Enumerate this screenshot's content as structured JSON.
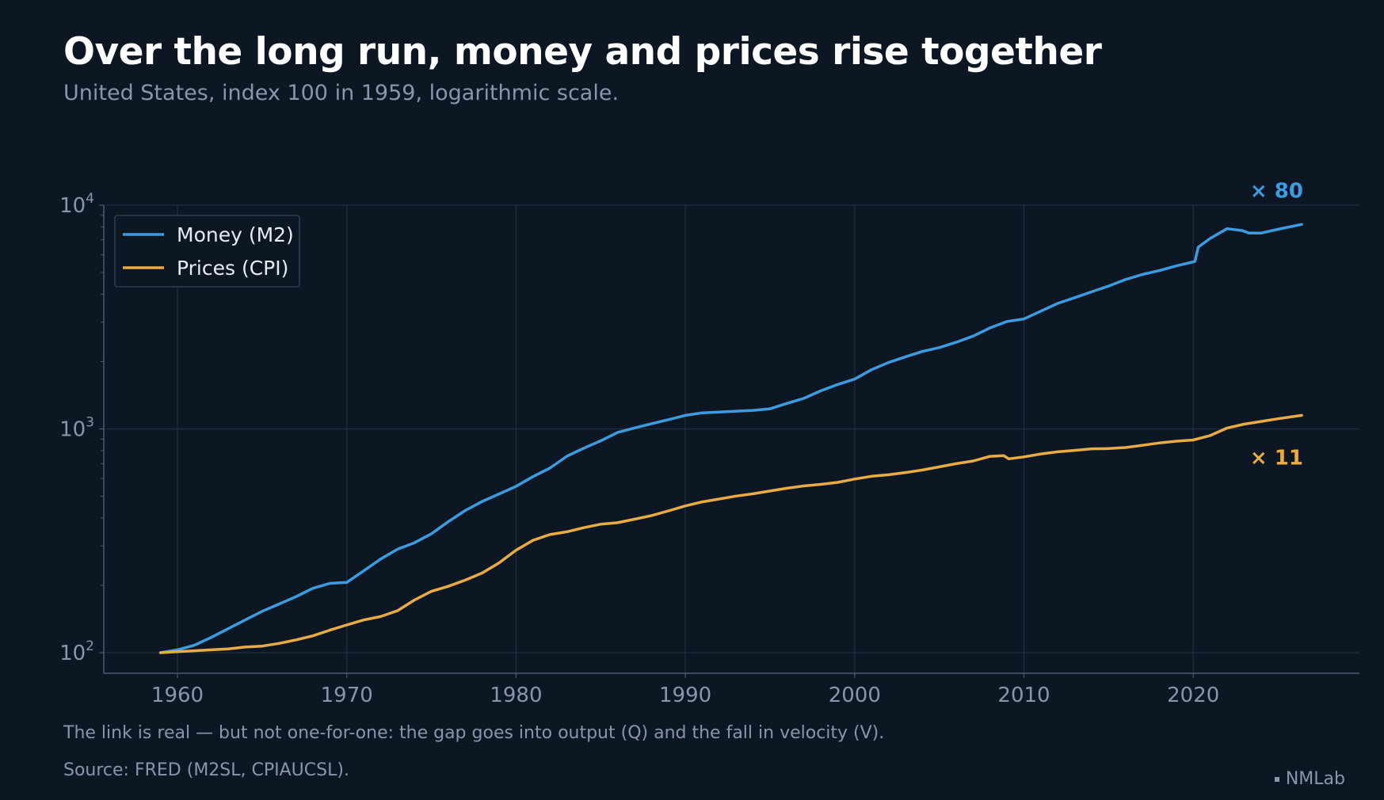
{
  "title": "Over the long run, money and prices rise together",
  "subtitle": "United States, index 100 in 1959, logarithmic scale.",
  "note": "The link is real — but not one-for-one: the gap goes into output (Q) and the fall in velocity (V).",
  "source": "Source: FRED (M2SL, CPIAUCSL).",
  "brand": "NMLab",
  "colors": {
    "background": "#0d1724",
    "m2": "#3d9be0",
    "cpi": "#e8ac45",
    "grid": "#1f2e40",
    "axis": "#4a5a70",
    "text": "#8796ad"
  },
  "chart_data": {
    "type": "line",
    "yscale": "log",
    "xlim": [
      1955.8,
      2029.5
    ],
    "ylim": [
      80,
      10000
    ],
    "xticks": [
      1960,
      1970,
      1980,
      1990,
      2000,
      2010,
      2020
    ],
    "yticks": [
      {
        "value": 100,
        "base": "10",
        "exp": "2"
      },
      {
        "value": 1000,
        "base": "10",
        "exp": "3"
      },
      {
        "value": 10000,
        "base": "10",
        "exp": "4"
      }
    ],
    "grid": true,
    "legend_position": "top-left",
    "series": [
      {
        "name": "Money (M2)",
        "color": "#3d9be0",
        "end_label": "× 80",
        "points": [
          [
            1959,
            100
          ],
          [
            1960,
            103
          ],
          [
            1961,
            108
          ],
          [
            1962,
            117
          ],
          [
            1963,
            128
          ],
          [
            1964,
            140
          ],
          [
            1965,
            153
          ],
          [
            1966,
            165
          ],
          [
            1967,
            178
          ],
          [
            1968,
            194
          ],
          [
            1969,
            204
          ],
          [
            1970,
            206
          ],
          [
            1971,
            232
          ],
          [
            1972,
            262
          ],
          [
            1973,
            290
          ],
          [
            1974,
            310
          ],
          [
            1975,
            340
          ],
          [
            1976,
            385
          ],
          [
            1977,
            432
          ],
          [
            1978,
            474
          ],
          [
            1979,
            512
          ],
          [
            1980,
            554
          ],
          [
            1981,
            612
          ],
          [
            1982,
            668
          ],
          [
            1983,
            755
          ],
          [
            1984,
            820
          ],
          [
            1985,
            885
          ],
          [
            1986,
            965
          ],
          [
            1987,
            1010
          ],
          [
            1988,
            1055
          ],
          [
            1989,
            1100
          ],
          [
            1990,
            1150
          ],
          [
            1991,
            1180
          ],
          [
            1992,
            1190
          ],
          [
            1993,
            1200
          ],
          [
            1994,
            1210
          ],
          [
            1995,
            1230
          ],
          [
            1996,
            1300
          ],
          [
            1997,
            1370
          ],
          [
            1998,
            1480
          ],
          [
            1999,
            1580
          ],
          [
            2000,
            1670
          ],
          [
            2001,
            1840
          ],
          [
            2002,
            1980
          ],
          [
            2003,
            2100
          ],
          [
            2004,
            2220
          ],
          [
            2005,
            2310
          ],
          [
            2006,
            2440
          ],
          [
            2007,
            2600
          ],
          [
            2008,
            2830
          ],
          [
            2009,
            3020
          ],
          [
            2010,
            3100
          ],
          [
            2011,
            3360
          ],
          [
            2012,
            3640
          ],
          [
            2013,
            3860
          ],
          [
            2014,
            4100
          ],
          [
            2015,
            4350
          ],
          [
            2016,
            4650
          ],
          [
            2017,
            4900
          ],
          [
            2018,
            5100
          ],
          [
            2019,
            5350
          ],
          [
            2020.1,
            5600
          ],
          [
            2020.3,
            6500
          ],
          [
            2021,
            7100
          ],
          [
            2022,
            7850
          ],
          [
            2022.9,
            7700
          ],
          [
            2023.3,
            7500
          ],
          [
            2024,
            7500
          ],
          [
            2025,
            7800
          ],
          [
            2026.4,
            8200
          ]
        ]
      },
      {
        "name": "Prices (CPI)",
        "color": "#e8ac45",
        "end_label": "× 11",
        "points": [
          [
            1959,
            100
          ],
          [
            1960,
            101
          ],
          [
            1961,
            102
          ],
          [
            1962,
            103
          ],
          [
            1963,
            104
          ],
          [
            1964,
            106
          ],
          [
            1965,
            107
          ],
          [
            1966,
            110
          ],
          [
            1967,
            114
          ],
          [
            1968,
            119
          ],
          [
            1969,
            126
          ],
          [
            1970,
            133
          ],
          [
            1971,
            140
          ],
          [
            1972,
            145
          ],
          [
            1973,
            154
          ],
          [
            1974,
            172
          ],
          [
            1975,
            188
          ],
          [
            1976,
            198
          ],
          [
            1977,
            211
          ],
          [
            1978,
            227
          ],
          [
            1979,
            252
          ],
          [
            1980,
            287
          ],
          [
            1981,
            318
          ],
          [
            1982,
            337
          ],
          [
            1983,
            347
          ],
          [
            1984,
            362
          ],
          [
            1985,
            375
          ],
          [
            1986,
            381
          ],
          [
            1987,
            395
          ],
          [
            1988,
            410
          ],
          [
            1989,
            430
          ],
          [
            1990,
            453
          ],
          [
            1991,
            472
          ],
          [
            1992,
            486
          ],
          [
            1993,
            501
          ],
          [
            1994,
            513
          ],
          [
            1995,
            528
          ],
          [
            1996,
            543
          ],
          [
            1997,
            556
          ],
          [
            1998,
            565
          ],
          [
            1999,
            577
          ],
          [
            2000,
            597
          ],
          [
            2001,
            614
          ],
          [
            2002,
            624
          ],
          [
            2003,
            638
          ],
          [
            2004,
            655
          ],
          [
            2005,
            677
          ],
          [
            2006,
            699
          ],
          [
            2007,
            719
          ],
          [
            2008,
            754
          ],
          [
            2008.8,
            760
          ],
          [
            2009.1,
            735
          ],
          [
            2010,
            750
          ],
          [
            2011,
            773
          ],
          [
            2012,
            790
          ],
          [
            2013,
            802
          ],
          [
            2014,
            815
          ],
          [
            2015,
            817
          ],
          [
            2016,
            826
          ],
          [
            2017,
            845
          ],
          [
            2018,
            866
          ],
          [
            2019,
            881
          ],
          [
            2020,
            892
          ],
          [
            2021,
            934
          ],
          [
            2022,
            1009
          ],
          [
            2023,
            1050
          ],
          [
            2024,
            1080
          ],
          [
            2025,
            1110
          ],
          [
            2026.4,
            1150
          ]
        ]
      }
    ]
  }
}
